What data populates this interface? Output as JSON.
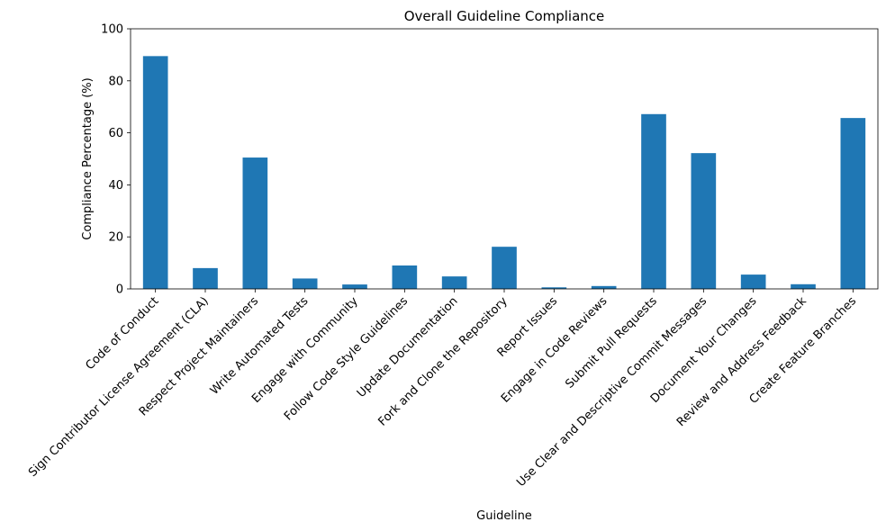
{
  "chart_data": {
    "type": "bar",
    "title": "Overall Guideline Compliance",
    "xlabel": "Guideline",
    "ylabel": "Compliance Percentage (%)",
    "ylim": [
      0,
      100
    ],
    "yticks": [
      0,
      20,
      40,
      60,
      80,
      100
    ],
    "grid": false,
    "legend": "none",
    "bar_color": "#1f77b4",
    "categories": [
      "Code of Conduct",
      "Sign Contributor License Agreement (CLA)",
      "Respect Project Maintainers",
      "Write Automated Tests",
      "Engage with Community",
      "Follow Code Style Guidelines",
      "Update Documentation",
      "Fork and Clone the Repository",
      "Report Issues",
      "Engage in Code Reviews",
      "Submit Pull Requests",
      "Use Clear and Descriptive Commit Messages",
      "Document Your Changes",
      "Review and Address Feedback",
      "Create Feature Branches"
    ],
    "values": [
      89.5,
      8.0,
      50.5,
      4.0,
      1.7,
      9.0,
      4.8,
      16.2,
      0.6,
      1.1,
      67.2,
      52.2,
      5.5,
      1.8,
      65.7
    ]
  }
}
